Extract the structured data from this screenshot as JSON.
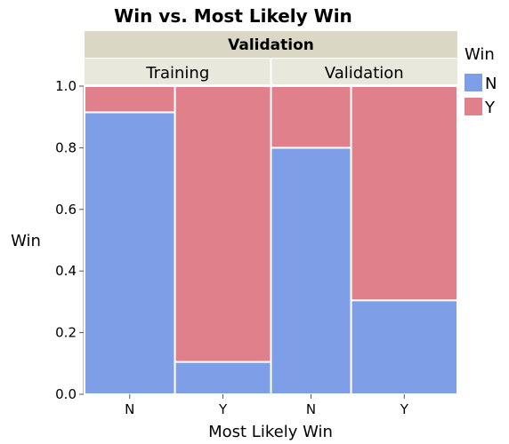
{
  "chart_data": {
    "type": "mosaic",
    "title": "Win vs. Most Likely Win",
    "group_header": "Validation",
    "panels": [
      {
        "label": "Training",
        "weight": 0.5,
        "columns": [
          {
            "category": "N",
            "width": 0.485,
            "values": {
              "N": 0.915,
              "Y": 0.085
            }
          },
          {
            "category": "Y",
            "width": 0.515,
            "values": {
              "N": 0.105,
              "Y": 0.895
            }
          }
        ]
      },
      {
        "label": "Validation",
        "weight": 0.5,
        "columns": [
          {
            "category": "N",
            "width": 0.43,
            "values": {
              "N": 0.8,
              "Y": 0.2
            }
          },
          {
            "category": "Y",
            "width": 0.57,
            "values": {
              "N": 0.305,
              "Y": 0.695
            }
          }
        ]
      }
    ],
    "xlabel": "Most Likely Win",
    "ylabel": "Win",
    "ylim": [
      0,
      1
    ],
    "yticks": [
      "0.0",
      "0.2",
      "0.4",
      "0.6",
      "0.8",
      "1.0"
    ],
    "legend": {
      "title": "Win",
      "placement": "right",
      "items": [
        {
          "label": "N",
          "color": "#7F9EE8"
        },
        {
          "label": "Y",
          "color": "#E0808B"
        }
      ]
    },
    "colors": {
      "N": "#7F9EE8",
      "Y": "#E0808B",
      "header_dark": "#DAD7C5",
      "header_light": "#E9E8DC"
    }
  }
}
